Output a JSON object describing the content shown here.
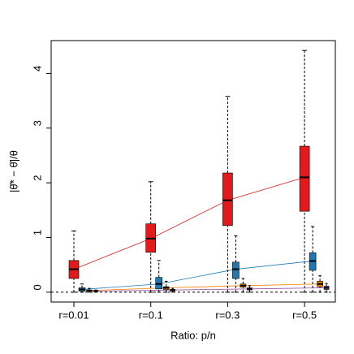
{
  "chart_data": {
    "type": "box",
    "x_label": "Ratio: p/n",
    "y_label": "|θ̂* − θ̂|/θ",
    "categories": [
      "r=0.01",
      "r=0.1",
      "r=0.3",
      "r=0.5"
    ],
    "ylim": [
      -0.18,
      4.6
    ],
    "yticks": [
      0,
      1,
      2,
      3,
      4
    ],
    "hline": 0,
    "series": [
      {
        "color": "#e31a1c",
        "min": [
          0.0,
          0.0,
          0.0,
          0.0
        ],
        "q1": [
          0.25,
          0.73,
          1.22,
          1.48
        ],
        "median": [
          0.42,
          0.98,
          1.68,
          2.1
        ],
        "q3": [
          0.58,
          1.25,
          2.18,
          2.67
        ],
        "max": [
          1.12,
          2.02,
          3.58,
          4.42
        ]
      },
      {
        "color": "#1f78b4",
        "min": [
          0.0,
          0.0,
          0.0,
          0.0
        ],
        "q1": [
          0.02,
          0.06,
          0.25,
          0.4
        ],
        "median": [
          0.05,
          0.15,
          0.42,
          0.57
        ],
        "q3": [
          0.08,
          0.27,
          0.55,
          0.72
        ],
        "max": [
          0.15,
          0.58,
          1.03,
          1.2
        ]
      },
      {
        "color": "#ff7f00",
        "min": [
          0.0,
          0.0,
          0.0,
          0.0
        ],
        "q1": [
          0.02,
          0.05,
          0.09,
          0.1
        ],
        "median": [
          0.03,
          0.08,
          0.12,
          0.15
        ],
        "q3": [
          0.04,
          0.1,
          0.15,
          0.2
        ],
        "max": [
          0.07,
          0.2,
          0.25,
          0.3
        ]
      },
      {
        "color": "#984ea3",
        "min": [
          0.0,
          0.0,
          0.0,
          0.0
        ],
        "q1": [
          0.01,
          0.02,
          0.04,
          0.05
        ],
        "median": [
          0.02,
          0.04,
          0.06,
          0.08
        ],
        "q3": [
          0.03,
          0.05,
          0.08,
          0.11
        ],
        "max": [
          0.04,
          0.07,
          0.12,
          0.16
        ]
      }
    ]
  }
}
